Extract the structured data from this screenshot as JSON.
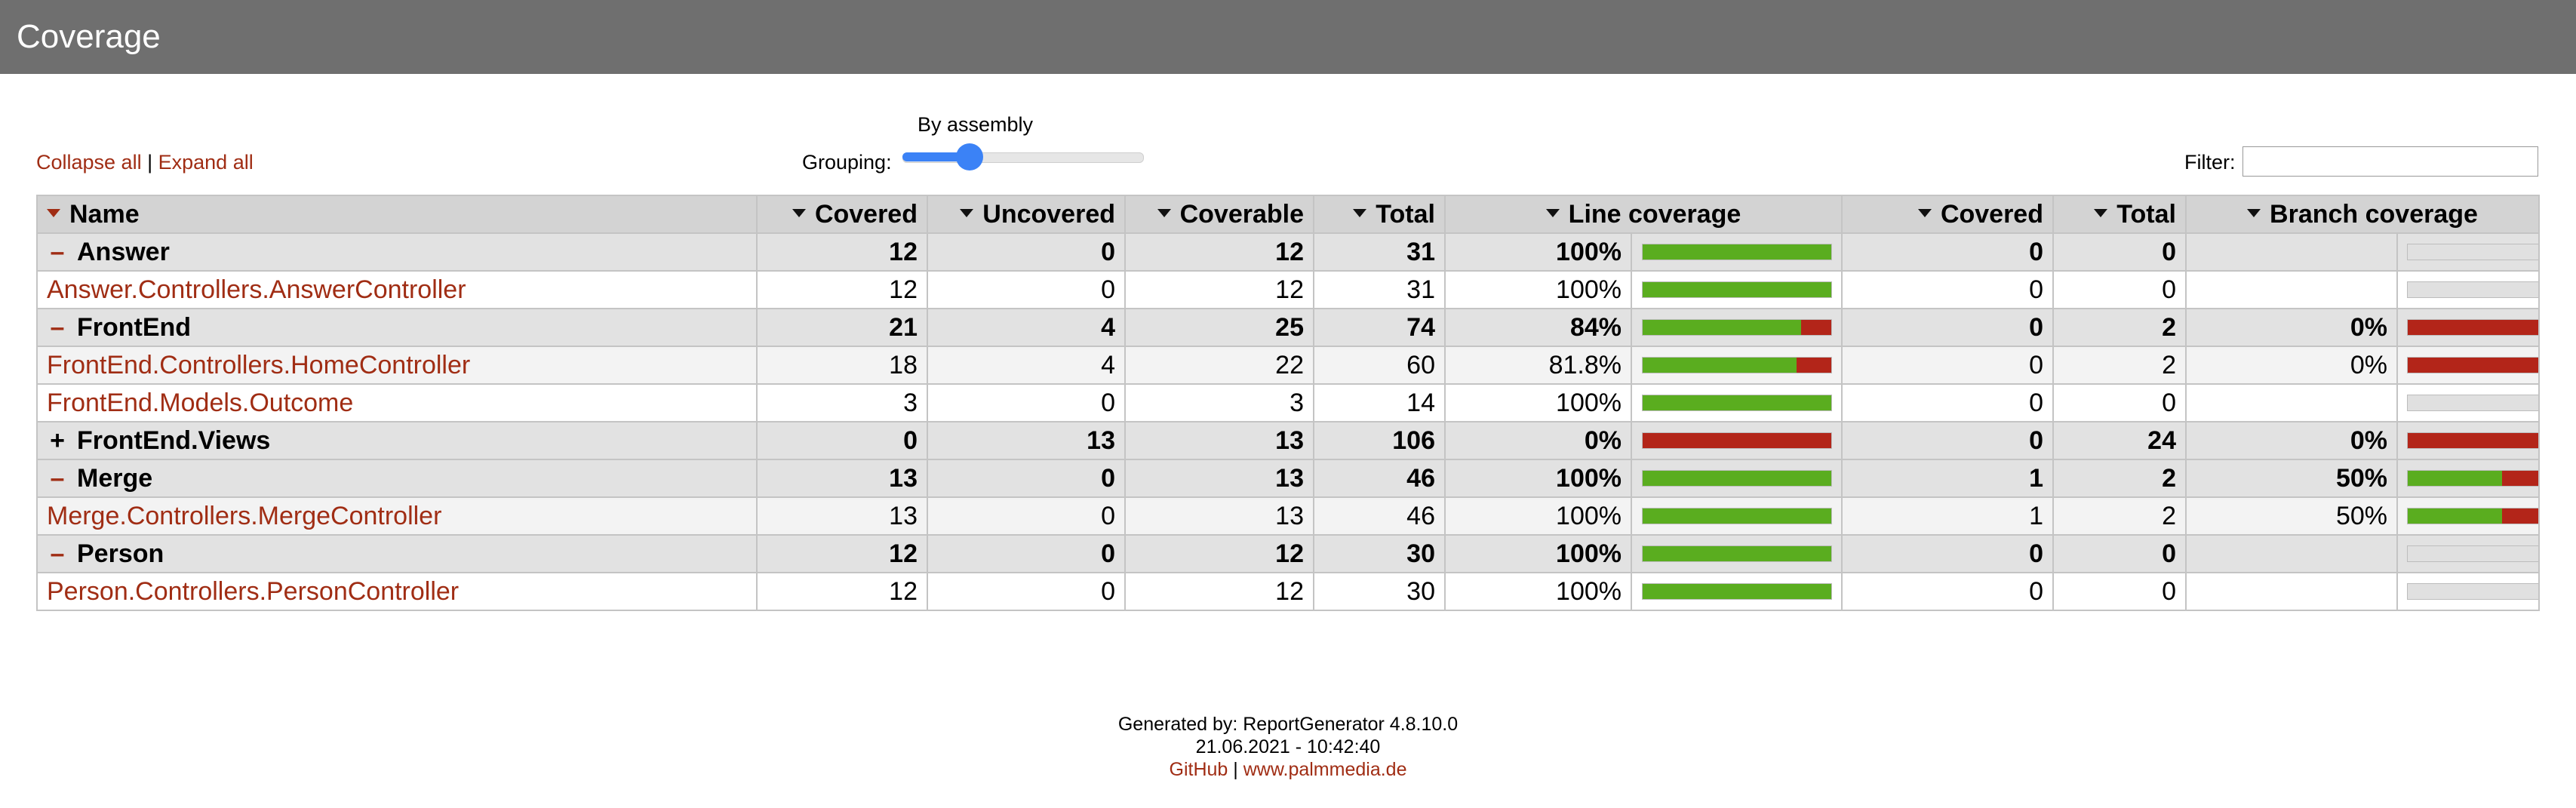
{
  "header": {
    "title": "Coverage"
  },
  "toolbar": {
    "collapse_all": "Collapse all",
    "separator": "|",
    "expand_all": "Expand all",
    "grouping_caption": "By assembly",
    "grouping_label": "Grouping:",
    "grouping_level": 0.25,
    "filter_label": "Filter:",
    "filter_value": ""
  },
  "columns": [
    "Name",
    "Covered",
    "Uncovered",
    "Coverable",
    "Total",
    "Line coverage",
    "Covered",
    "Total",
    "Branch coverage"
  ],
  "rows": [
    {
      "type": "assembly",
      "toggle": "minus",
      "name": "Answer",
      "covered": "12",
      "uncovered": "0",
      "coverable": "12",
      "total": "31",
      "line_pct": "100%",
      "line_fraction": 1.0,
      "b_covered": "0",
      "b_total": "0",
      "branch_pct": "",
      "branch_fraction": null
    },
    {
      "type": "class",
      "name": "Answer.Controllers.AnswerController",
      "covered": "12",
      "uncovered": "0",
      "coverable": "12",
      "total": "31",
      "line_pct": "100%",
      "line_fraction": 1.0,
      "b_covered": "0",
      "b_total": "0",
      "branch_pct": "",
      "branch_fraction": null
    },
    {
      "type": "assembly",
      "toggle": "minus",
      "name": "FrontEnd",
      "covered": "21",
      "uncovered": "4",
      "coverable": "25",
      "total": "74",
      "line_pct": "84%",
      "line_fraction": 0.84,
      "b_covered": "0",
      "b_total": "2",
      "branch_pct": "0%",
      "branch_fraction": 0.0
    },
    {
      "type": "class",
      "name": "FrontEnd.Controllers.HomeController",
      "covered": "18",
      "uncovered": "4",
      "coverable": "22",
      "total": "60",
      "line_pct": "81.8%",
      "line_fraction": 0.818,
      "b_covered": "0",
      "b_total": "2",
      "branch_pct": "0%",
      "branch_fraction": 0.0
    },
    {
      "type": "class",
      "name": "FrontEnd.Models.Outcome",
      "covered": "3",
      "uncovered": "0",
      "coverable": "3",
      "total": "14",
      "line_pct": "100%",
      "line_fraction": 1.0,
      "b_covered": "0",
      "b_total": "0",
      "branch_pct": "",
      "branch_fraction": null
    },
    {
      "type": "assembly",
      "toggle": "plus",
      "name": "FrontEnd.Views",
      "covered": "0",
      "uncovered": "13",
      "coverable": "13",
      "total": "106",
      "line_pct": "0%",
      "line_fraction": 0.0,
      "b_covered": "0",
      "b_total": "24",
      "branch_pct": "0%",
      "branch_fraction": 0.0
    },
    {
      "type": "assembly",
      "toggle": "minus",
      "name": "Merge",
      "covered": "13",
      "uncovered": "0",
      "coverable": "13",
      "total": "46",
      "line_pct": "100%",
      "line_fraction": 1.0,
      "b_covered": "1",
      "b_total": "2",
      "branch_pct": "50%",
      "branch_fraction": 0.5
    },
    {
      "type": "class",
      "name": "Merge.Controllers.MergeController",
      "covered": "13",
      "uncovered": "0",
      "coverable": "13",
      "total": "46",
      "line_pct": "100%",
      "line_fraction": 1.0,
      "b_covered": "1",
      "b_total": "2",
      "branch_pct": "50%",
      "branch_fraction": 0.5
    },
    {
      "type": "assembly",
      "toggle": "minus",
      "name": "Person",
      "covered": "12",
      "uncovered": "0",
      "coverable": "12",
      "total": "30",
      "line_pct": "100%",
      "line_fraction": 1.0,
      "b_covered": "0",
      "b_total": "0",
      "branch_pct": "",
      "branch_fraction": null
    },
    {
      "type": "class",
      "name": "Person.Controllers.PersonController",
      "covered": "12",
      "uncovered": "0",
      "coverable": "12",
      "total": "30",
      "line_pct": "100%",
      "line_fraction": 1.0,
      "b_covered": "0",
      "b_total": "0",
      "branch_pct": "",
      "branch_fraction": null
    }
  ],
  "footer": {
    "generated": "Generated by: ReportGenerator 4.8.10.0",
    "date": "21.06.2021 - 10:42:40",
    "github": "GitHub",
    "separator": "|",
    "website": "www.palmmedia.de"
  },
  "colors": {
    "header_bg": "#6f6f6f",
    "link": "#a02d14",
    "covered_bar": "#5aad1f",
    "uncovered_bar": "#b32519",
    "empty_bar": "#e0e0e0",
    "slider": "#3b82f6"
  }
}
